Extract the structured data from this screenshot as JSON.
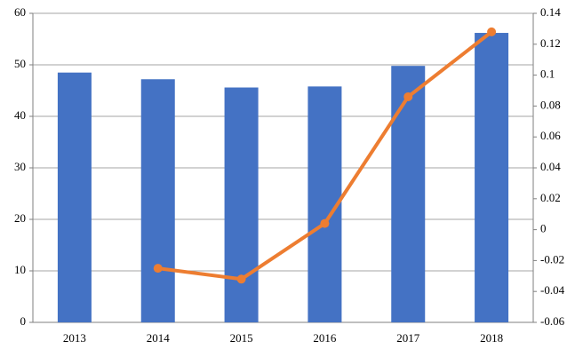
{
  "chart_data": {
    "type": "bar",
    "categories": [
      "2013",
      "2014",
      "2015",
      "2016",
      "2017",
      "2018"
    ],
    "series": [
      {
        "type": "bar",
        "color": "#4472c4",
        "values": [
          48.5,
          47.2,
          45.6,
          45.8,
          49.8,
          56.2
        ]
      },
      {
        "type": "line",
        "axis": "y2",
        "color": "#ed7d31",
        "values": [
          null,
          -0.025,
          -0.032,
          0.004,
          0.086,
          0.128
        ]
      }
    ],
    "ylim": [
      0,
      60
    ],
    "yticks": [
      0,
      10,
      20,
      30,
      40,
      50,
      60
    ],
    "y2lim": [
      -0.06,
      0.14
    ],
    "y2ticks": [
      -0.06,
      -0.04,
      -0.02,
      0,
      0.02,
      0.04,
      0.06,
      0.08,
      0.1,
      0.12,
      0.14
    ],
    "grid": true
  }
}
